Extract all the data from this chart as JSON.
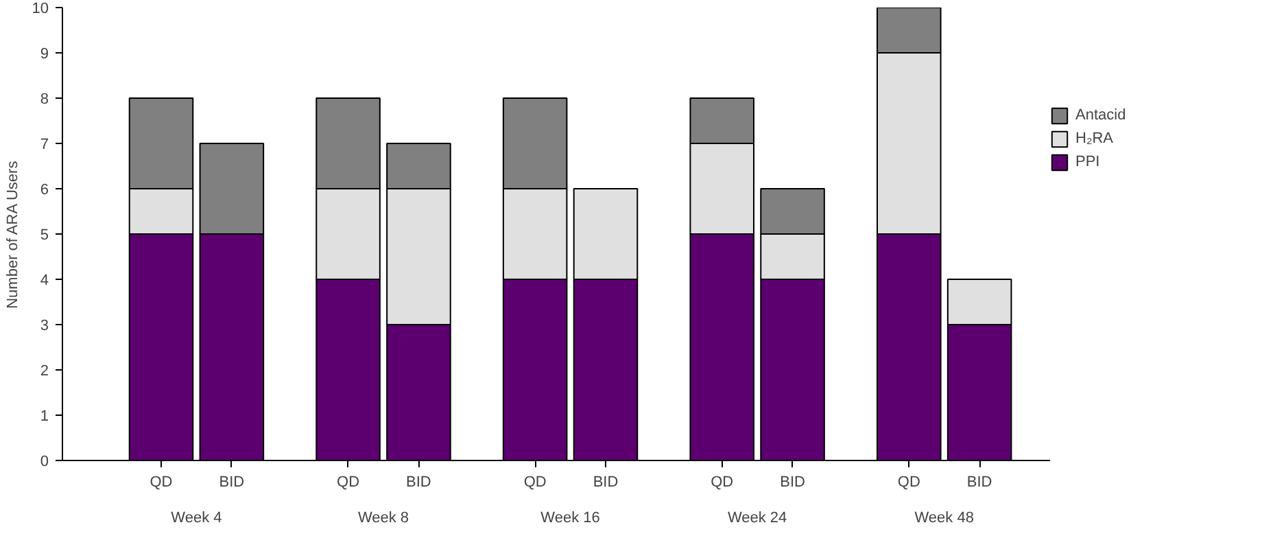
{
  "chart_data": {
    "type": "bar",
    "stacked": true,
    "ylabel": "Number of ARA Users",
    "categories": [
      "QD",
      "BID",
      "QD",
      "BID",
      "QD",
      "BID",
      "QD",
      "BID",
      "QD",
      "BID"
    ],
    "annotations": [
      "Week 4",
      "Week 8",
      "Week 16",
      "Week 24",
      "Week 48"
    ],
    "series": [
      {
        "name": "PPI",
        "color": "#5c0070",
        "values": [
          5,
          5,
          4,
          3,
          4,
          4,
          5,
          4,
          5,
          3
        ]
      },
      {
        "name": "H₂RA",
        "color": "#e0e0e0",
        "values": [
          1,
          0,
          2,
          3,
          2,
          2,
          2,
          1,
          4,
          1
        ]
      },
      {
        "name": "Antacid",
        "color": "#808080",
        "values": [
          2,
          2,
          2,
          1,
          2,
          0,
          1,
          1,
          1,
          0
        ]
      }
    ],
    "ylim": [
      0,
      10
    ],
    "yticks": [
      0,
      1,
      2,
      3,
      4,
      5,
      6,
      7,
      8,
      9,
      10
    ],
    "grid": false,
    "legend": "right"
  }
}
